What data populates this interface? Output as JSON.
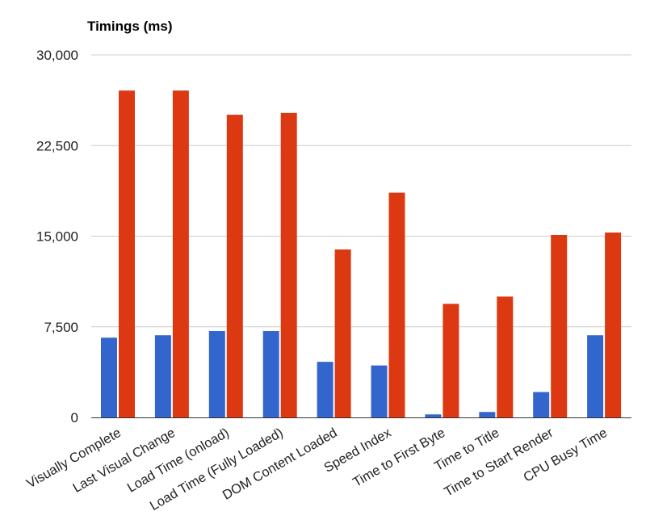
{
  "chart_data": {
    "type": "bar",
    "title": "Timings (ms)",
    "categories": [
      "Visually Complete",
      "Last Visual Change",
      "Load Time (onload)",
      "Load Time (Fully Loaded)",
      "DOM Content Loaded",
      "Speed Index",
      "Time to First Byte",
      "Time to Title",
      "Time to Start Render",
      "CPU Busy Time"
    ],
    "series": [
      {
        "color": "#3366cc",
        "values": [
          6600,
          6800,
          7150,
          7150,
          4600,
          4300,
          250,
          450,
          2100,
          6800
        ]
      },
      {
        "color": "#dc3912",
        "values": [
          27050,
          27050,
          25050,
          25200,
          13900,
          18600,
          9400,
          10000,
          15100,
          15300
        ]
      }
    ],
    "yticks": [
      "0",
      "7,500",
      "15,000",
      "22,500",
      "30,000"
    ],
    "ytick_values": [
      0,
      7500,
      15000,
      22500,
      30000
    ],
    "ylim": [
      0,
      30000
    ],
    "grid": true,
    "legend": "none"
  }
}
